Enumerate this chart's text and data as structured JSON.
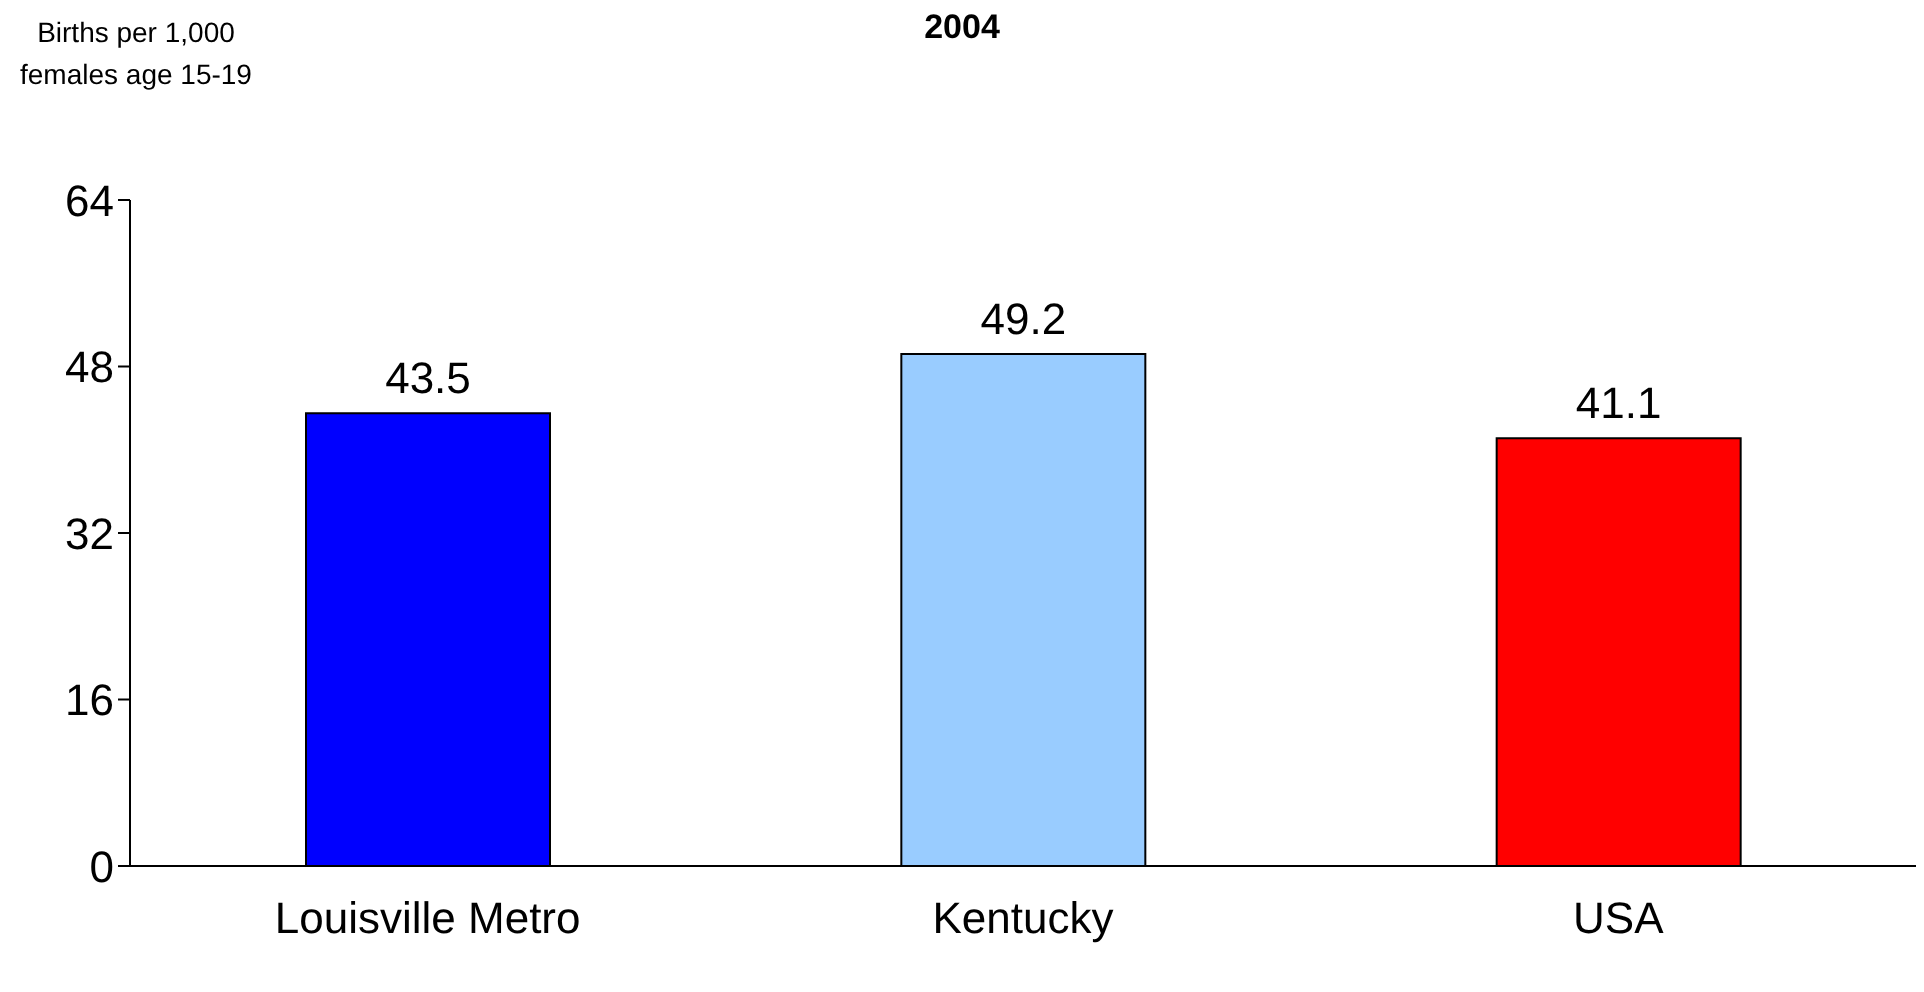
{
  "chart_data": {
    "type": "bar",
    "title": "2004",
    "ylabel": "Births per 1,000\nfemales age 15-19",
    "categories": [
      "Louisville Metro",
      "Kentucky",
      "USA"
    ],
    "values": [
      43.5,
      49.2,
      41.1
    ],
    "colors": [
      "#0000ff",
      "#99ccff",
      "#ff0000"
    ],
    "ylim": [
      0,
      64
    ],
    "yticks": [
      0,
      16,
      32,
      48,
      64
    ],
    "data_labels": true,
    "grid": false
  }
}
